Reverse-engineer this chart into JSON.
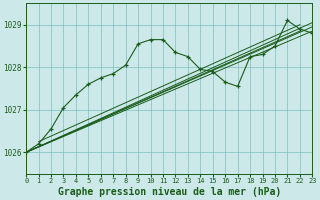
{
  "title": "Graphe pression niveau de la mer (hPa)",
  "bg_color": "#cce8e8",
  "line_color": "#1a5c1a",
  "grid_color": "#7fbfbf",
  "text_color": "#1a5c1a",
  "xlim": [
    0,
    23
  ],
  "ylim": [
    1025.5,
    1029.5
  ],
  "yticks": [
    1026,
    1027,
    1028,
    1029
  ],
  "xticks": [
    0,
    1,
    2,
    3,
    4,
    5,
    6,
    7,
    8,
    9,
    10,
    11,
    12,
    13,
    14,
    15,
    16,
    17,
    18,
    19,
    20,
    21,
    22,
    23
  ],
  "trend_lines": [
    [
      [
        0,
        23
      ],
      [
        1026.0,
        1028.85
      ]
    ],
    [
      [
        0,
        23
      ],
      [
        1026.0,
        1028.95
      ]
    ],
    [
      [
        0,
        23
      ],
      [
        1026.0,
        1029.05
      ]
    ],
    [
      [
        0,
        22
      ],
      [
        1026.0,
        1028.85
      ]
    ],
    [
      [
        1,
        22
      ],
      [
        1026.25,
        1029.0
      ]
    ]
  ],
  "main_series_x": [
    0,
    1,
    2,
    3,
    4,
    5,
    6,
    7,
    8,
    9,
    10,
    11,
    12,
    13,
    14,
    15,
    16,
    17,
    18,
    19,
    20,
    21,
    22,
    23
  ],
  "main_series_y": [
    1026.0,
    1026.2,
    1026.55,
    1027.05,
    1027.35,
    1027.6,
    1027.75,
    1027.85,
    1028.05,
    1028.55,
    1028.65,
    1028.65,
    1028.35,
    1028.25,
    1027.95,
    1027.9,
    1027.65,
    1027.55,
    1028.25,
    1028.3,
    1028.5,
    1029.1,
    1028.9,
    1028.8
  ],
  "title_fontsize": 7.0
}
